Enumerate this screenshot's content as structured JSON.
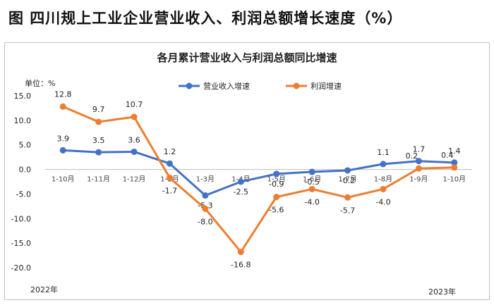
{
  "page": {
    "title": "图  四川规上工业企业营业收入、利润总额增长速度（%）"
  },
  "chart_data": {
    "type": "line",
    "title": "各月累计营业收入与利润总额同比增速",
    "unit_label": "单位：%",
    "categories": [
      "1-10月",
      "1-11月",
      "1-12月",
      "1-2月",
      "1-3月",
      "1-4月",
      "1-5月",
      "1-6月",
      "1-7月",
      "1-8月",
      "1-9月",
      "1-10月"
    ],
    "series": [
      {
        "name": "营业收入增速",
        "color": "#4472c4",
        "values": [
          3.9,
          3.5,
          3.6,
          1.2,
          -5.3,
          -2.5,
          -0.9,
          -0.5,
          -0.2,
          1.1,
          1.7,
          1.4
        ]
      },
      {
        "name": "利润增速",
        "color": "#ed7d31",
        "values": [
          12.8,
          9.7,
          10.7,
          -1.7,
          -8.0,
          -16.8,
          -5.6,
          -4.0,
          -5.7,
          -4.0,
          0.2,
          0.4
        ]
      }
    ],
    "data_labels": [
      [
        "3.9",
        "3.5",
        "3.6",
        "1.2",
        "-5.3",
        "-2.5",
        "-0.9",
        "-0.5",
        "-0.2",
        "1.1",
        "1.7",
        "1.4"
      ],
      [
        "12.8",
        "9.7",
        "10.7",
        "-1.7",
        "-8.0",
        "-16.8",
        "-5.6",
        "-4.0",
        "-5.7",
        "-4.0",
        "0.2",
        "0.4"
      ]
    ],
    "y_ticks": [
      "15.0",
      "10.0",
      "5.0",
      "0.0",
      "-5.0",
      "-10.0",
      "-15.0",
      "-20.0"
    ],
    "y_tick_values": [
      15,
      10,
      5,
      0,
      -5,
      -10,
      -15,
      -20
    ],
    "ylim": [
      -20,
      15
    ],
    "grid": false,
    "legend_position": "top-center",
    "year_labels": [
      "2022年",
      "2023年"
    ]
  }
}
